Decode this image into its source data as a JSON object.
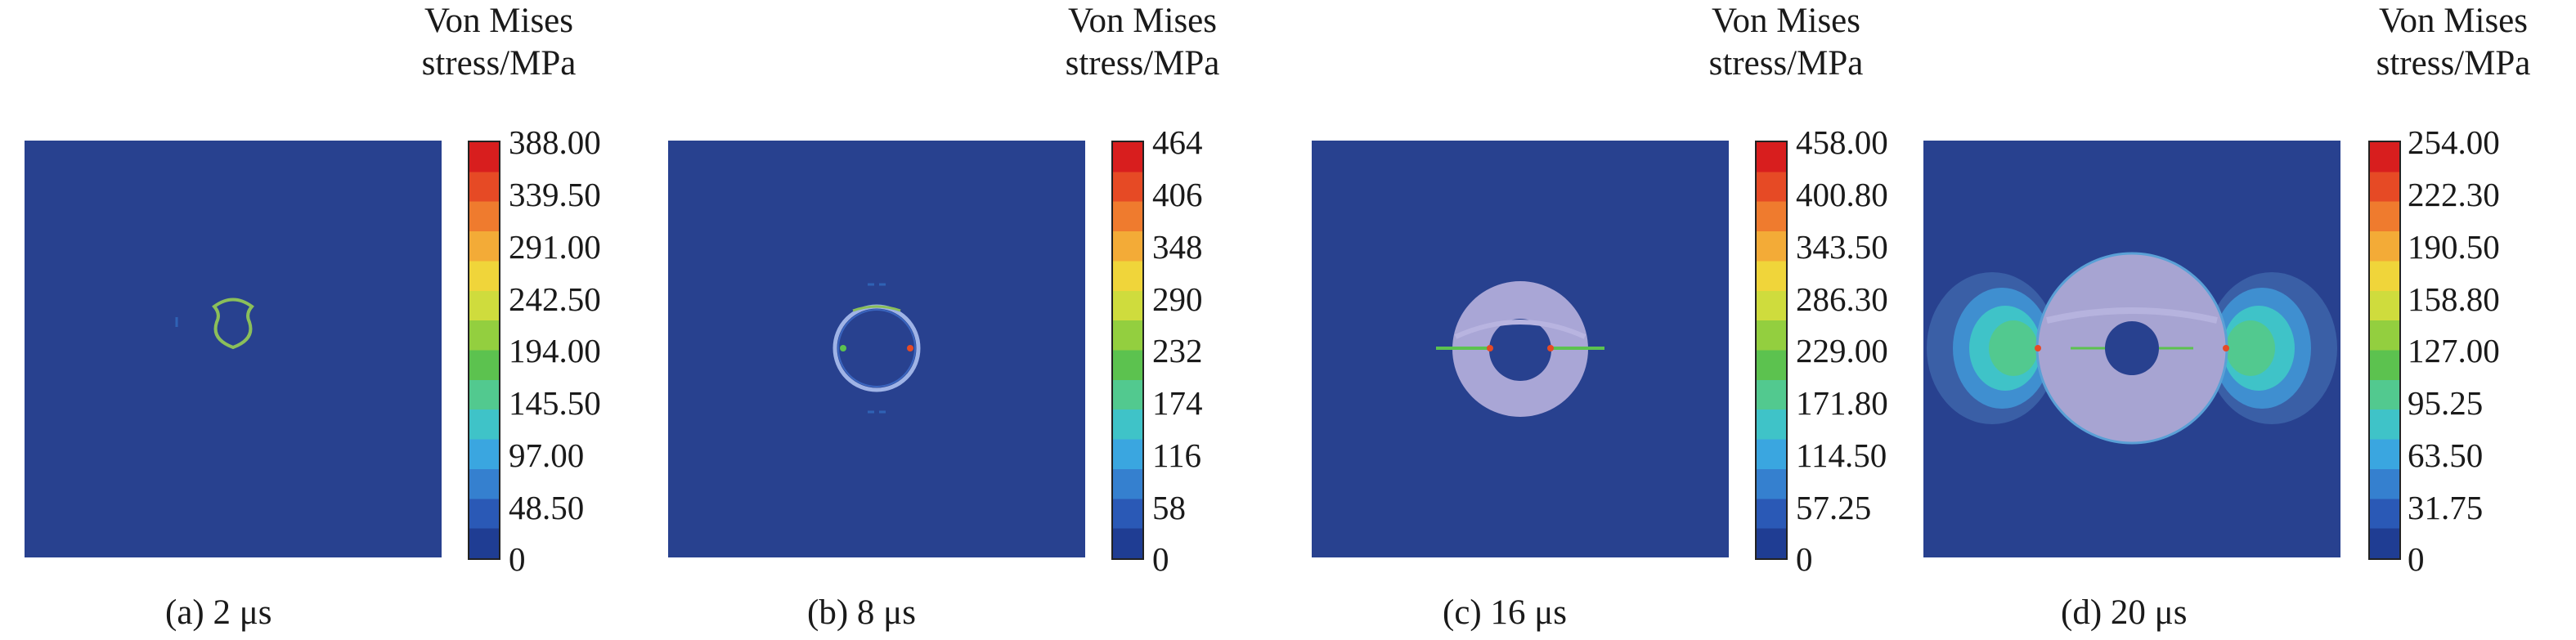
{
  "legend": {
    "title_line1": "Von Mises",
    "title_line2": "stress/MPa"
  },
  "colormap": [
    "#1f3d93",
    "#2a59b6",
    "#3580cf",
    "#3aa6e0",
    "#3fc3c8",
    "#52c98f",
    "#5cc24f",
    "#93cf3f",
    "#cfdc3d",
    "#f0d53a",
    "#f3ab37",
    "#ef7b2e",
    "#e64a25",
    "#d81e1e"
  ],
  "field_background": "#28418f",
  "panels": [
    {
      "caption": "(a) 2 μs",
      "ticks": [
        "388.00",
        "339.50",
        "291.00",
        "242.50",
        "194.00",
        "145.50",
        "97.00",
        "48.50",
        "0"
      ]
    },
    {
      "caption": "(b) 8 μs",
      "ticks": [
        "464",
        "406",
        "348",
        "290",
        "232",
        "174",
        "116",
        "58",
        "0"
      ]
    },
    {
      "caption": "(c) 16 μs",
      "ticks": [
        "458.00",
        "400.80",
        "343.50",
        "286.30",
        "229.00",
        "171.80",
        "114.50",
        "57.25",
        "0"
      ]
    },
    {
      "caption": "(d) 20 μs",
      "ticks": [
        "254.00",
        "222.30",
        "190.50",
        "158.80",
        "127.00",
        "95.25",
        "63.50",
        "31.75",
        "0"
      ]
    }
  ]
}
